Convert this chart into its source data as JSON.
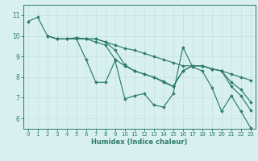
{
  "xlabel": "Humidex (Indice chaleur)",
  "bg_color": "#d8f0f0",
  "grid_color": "#c8e4e4",
  "line_color": "#2e7b6e",
  "xlim": [
    -0.5,
    23.5
  ],
  "ylim": [
    5.5,
    11.5
  ],
  "yticks": [
    6,
    7,
    8,
    9,
    10,
    11
  ],
  "xticks": [
    0,
    1,
    2,
    3,
    4,
    5,
    6,
    7,
    8,
    9,
    10,
    11,
    12,
    13,
    14,
    15,
    16,
    17,
    18,
    19,
    20,
    21,
    22,
    23
  ],
  "lines": [
    {
      "x": [
        0,
        1,
        2,
        3,
        4,
        5,
        6,
        7,
        8,
        9,
        10,
        11,
        12,
        13,
        14,
        15,
        16,
        17,
        18,
        19,
        20,
        21,
        22,
        23
      ],
      "y": [
        10.7,
        10.9,
        10.0,
        9.85,
        9.85,
        9.85,
        8.85,
        7.75,
        7.75,
        8.8,
        6.95,
        7.1,
        7.2,
        6.65,
        6.55,
        7.2,
        9.45,
        8.5,
        8.3,
        7.5,
        6.35,
        7.1,
        6.35,
        5.55
      ]
    },
    {
      "x": [
        2,
        3,
        4,
        5,
        6,
        7,
        8,
        9,
        10,
        11,
        12,
        13,
        14,
        15,
        16,
        17,
        18,
        19,
        20,
        21,
        22,
        23
      ],
      "y": [
        10.0,
        9.85,
        9.85,
        9.9,
        9.85,
        9.85,
        9.7,
        9.3,
        8.6,
        8.3,
        8.15,
        8.0,
        7.75,
        7.55,
        8.3,
        8.55,
        8.55,
        8.4,
        8.3,
        7.75,
        7.4,
        6.8
      ]
    },
    {
      "x": [
        2,
        3,
        4,
        5,
        6,
        7,
        8,
        9,
        10,
        11,
        12,
        13,
        14,
        15,
        16,
        17,
        18,
        19,
        20,
        21,
        22,
        23
      ],
      "y": [
        10.0,
        9.85,
        9.85,
        9.9,
        9.85,
        9.85,
        9.7,
        9.55,
        9.4,
        9.3,
        9.15,
        9.0,
        8.85,
        8.7,
        8.55,
        8.55,
        8.55,
        8.4,
        8.3,
        8.15,
        8.0,
        7.85
      ]
    },
    {
      "x": [
        4,
        5,
        6,
        7,
        8,
        9,
        10,
        11,
        12,
        13,
        14,
        15,
        16,
        17,
        18,
        19,
        20,
        21,
        22,
        23
      ],
      "y": [
        9.85,
        9.85,
        9.85,
        9.7,
        9.55,
        8.85,
        8.55,
        8.3,
        8.15,
        8.0,
        7.8,
        7.55,
        8.3,
        8.55,
        8.55,
        8.4,
        8.3,
        7.55,
        7.1,
        6.4
      ]
    }
  ]
}
